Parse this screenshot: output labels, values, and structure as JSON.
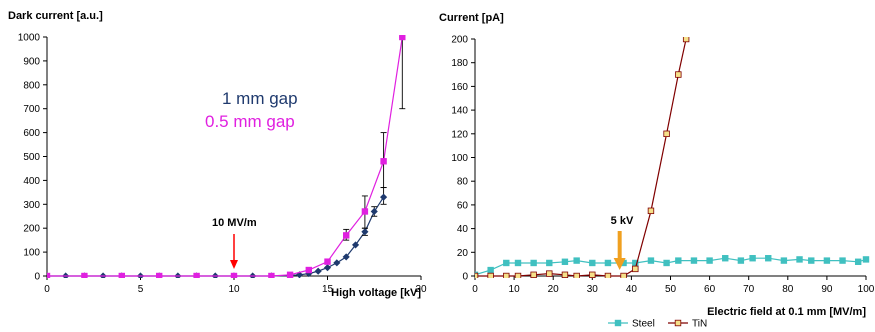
{
  "chart_data": [
    {
      "type": "line",
      "ylabel": "Dark current [a.u.]",
      "xlabel": "High voltage [kV]",
      "xlim": [
        0,
        20
      ],
      "ylim": [
        0,
        1000
      ],
      "xticks": [
        0,
        5,
        10,
        15,
        20
      ],
      "yticks": [
        0,
        100,
        200,
        300,
        400,
        500,
        600,
        700,
        800,
        900,
        1000
      ],
      "grid": false,
      "annotations": [
        {
          "text": "1 mm gap",
          "color": "#1f3a6e"
        },
        {
          "text": "0.5 mm gap",
          "color": "#e020e0"
        },
        {
          "text": "10 MV/m",
          "arrow_x": 10,
          "color": "#ff0000"
        }
      ],
      "series": [
        {
          "name": "1 mm gap",
          "color": "#1f3a6e",
          "marker": "diamond",
          "x": [
            0,
            1,
            2,
            3,
            4,
            5,
            6,
            7,
            8,
            9,
            10,
            11,
            12,
            13,
            13.5,
            14,
            14.5,
            15,
            15.5,
            16,
            16.5,
            17,
            17.5,
            18
          ],
          "y": [
            0,
            0,
            0,
            0,
            0,
            0,
            0,
            0,
            0,
            0,
            0,
            0,
            0,
            2,
            5,
            10,
            20,
            35,
            55,
            80,
            130,
            185,
            270,
            330
          ],
          "errors": [
            {
              "x": 17.0,
              "low": 170,
              "high": 200
            },
            {
              "x": 17.5,
              "low": 250,
              "high": 290
            },
            {
              "x": 18.0,
              "low": 300,
              "high": 370
            }
          ]
        },
        {
          "name": "0.5 mm gap",
          "color": "#e020e0",
          "marker": "square",
          "x": [
            0,
            2,
            4,
            6,
            8,
            10,
            12,
            13,
            14,
            15,
            16,
            17,
            18,
            19
          ],
          "y": [
            0,
            0,
            0,
            0,
            0,
            0,
            0,
            5,
            25,
            60,
            170,
            270,
            480,
            1000
          ],
          "errors": [
            {
              "x": 16.0,
              "low": 150,
              "high": 195
            },
            {
              "x": 17.0,
              "low": 200,
              "high": 335
            },
            {
              "x": 18.0,
              "low": 370,
              "high": 600
            },
            {
              "x": 19.0,
              "low": 700,
              "high": 1000
            }
          ]
        }
      ]
    },
    {
      "type": "line",
      "ylabel": "Current [pA]",
      "xlabel": "Electric field at 0.1 mm [MV/m]",
      "xlim": [
        0,
        100
      ],
      "ylim": [
        0,
        200
      ],
      "xticks": [
        0,
        10,
        20,
        30,
        40,
        50,
        60,
        70,
        80,
        90,
        100
      ],
      "yticks": [
        0,
        20,
        40,
        60,
        80,
        100,
        120,
        140,
        160,
        180,
        200
      ],
      "grid": false,
      "legend": "bottom-center",
      "annotations": [
        {
          "text": "5 kV",
          "arrow_x": 37,
          "color": "#f0a020"
        }
      ],
      "series": [
        {
          "name": "Steel",
          "color": "#40c0c0",
          "marker": "square",
          "x": [
            0,
            4,
            8,
            11,
            15,
            19,
            23,
            26,
            30,
            34,
            38,
            41,
            45,
            49,
            52,
            56,
            60,
            64,
            68,
            71,
            75,
            79,
            83,
            86,
            90,
            94,
            98,
            100
          ],
          "y": [
            1,
            5,
            11,
            11,
            11,
            11,
            12,
            13,
            11,
            11,
            11,
            11,
            13,
            11,
            13,
            13,
            13,
            15,
            13,
            15,
            15,
            13,
            14,
            13,
            13,
            13,
            12,
            14
          ]
        },
        {
          "name": "TiN",
          "color": "#800000",
          "marker_fill": "#f5e08a",
          "marker": "square",
          "x": [
            0,
            4,
            8,
            11,
            15,
            19,
            23,
            26,
            30,
            34,
            38,
            41,
            45,
            49,
            52,
            54
          ],
          "y": [
            0,
            0,
            0,
            0,
            1,
            2,
            1,
            0,
            1,
            0,
            0,
            6,
            55,
            120,
            170,
            200
          ]
        }
      ]
    }
  ]
}
